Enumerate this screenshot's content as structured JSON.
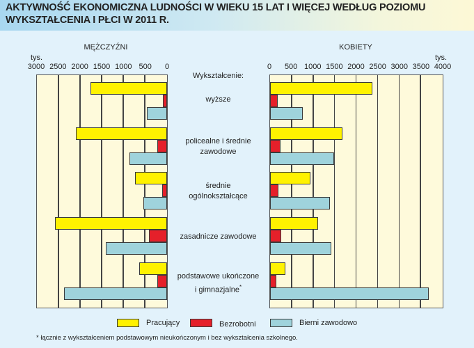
{
  "title": "AKTYWNOŚĆ EKONOMICZNA LUDNOŚCI W WIEKU 15 LAT I WIĘCEJ WEDŁUG POZIOMU WYKSZTAŁCENIA I PŁCI W 2011 R.",
  "left_panel": {
    "label": "MĘŻCZYŹNI",
    "unit": "tys.",
    "ticks": [
      "3000",
      "2500",
      "2000",
      "1500",
      "1000",
      "500",
      "0"
    ]
  },
  "right_panel": {
    "label": "KOBIETY",
    "unit": "tys.",
    "ticks": [
      "0",
      "500",
      "1000",
      "1500",
      "2000",
      "2500",
      "3000",
      "3500",
      "4000"
    ]
  },
  "category_header": "Wykształcenie:",
  "categories": [
    {
      "line1": "wyższe",
      "line2": ""
    },
    {
      "line1": "policealne i średnie",
      "line2": "zawodowe"
    },
    {
      "line1": "średnie",
      "line2": "ogólnokształcące"
    },
    {
      "line1": "zasadnicze zawodowe",
      "line2": ""
    },
    {
      "line1": "podstawowe ukończone",
      "line2": "i gimnazjalne*"
    }
  ],
  "legend": [
    {
      "label": "Pracujący",
      "color": "#fff200"
    },
    {
      "label": "Bezrobotni",
      "color": "#e5202a"
    },
    {
      "label": "Bierni zawodowo",
      "color": "#9fd3dc"
    }
  ],
  "footnote": "* łącznie z  wykształceniem podstawowym nieukończonym i bez wykształcenia szkolnego.",
  "chart_data": [
    {
      "type": "bar",
      "orientation": "horizontal",
      "title": "MĘŻCZYŹNI",
      "xlabel": "tys.",
      "xlim": [
        0,
        3000
      ],
      "x_reversed": true,
      "grid": true,
      "categories": [
        "wyższe",
        "policealne i średnie zawodowe",
        "średnie ogólnokształcące",
        "zasadnicze zawodowe",
        "podstawowe ukończone i gimnazjalne*"
      ],
      "series": [
        {
          "name": "Pracujący",
          "values": [
            1780,
            2110,
            750,
            2600,
            650
          ]
        },
        {
          "name": "Bezrobotni",
          "values": [
            95,
            230,
            110,
            425,
            230
          ]
        },
        {
          "name": "Bierni zawodowo",
          "values": [
            465,
            870,
            545,
            1420,
            2395
          ]
        }
      ]
    },
    {
      "type": "bar",
      "orientation": "horizontal",
      "title": "KOBIETY",
      "xlabel": "tys.",
      "xlim": [
        0,
        4000
      ],
      "grid": true,
      "categories": [
        "wyższe",
        "policealne i średnie zawodowe",
        "średnie ogólnokształcące",
        "zasadnicze zawodowe",
        "podstawowe ukończone i gimnazjalne*"
      ],
      "series": [
        {
          "name": "Pracujący",
          "values": [
            2385,
            1690,
            935,
            1115,
            360
          ]
        },
        {
          "name": "Bezrobotni",
          "values": [
            180,
            250,
            190,
            265,
            140
          ]
        },
        {
          "name": "Bierni zawodowo",
          "values": [
            765,
            1485,
            1385,
            1420,
            3690
          ]
        }
      ]
    }
  ]
}
